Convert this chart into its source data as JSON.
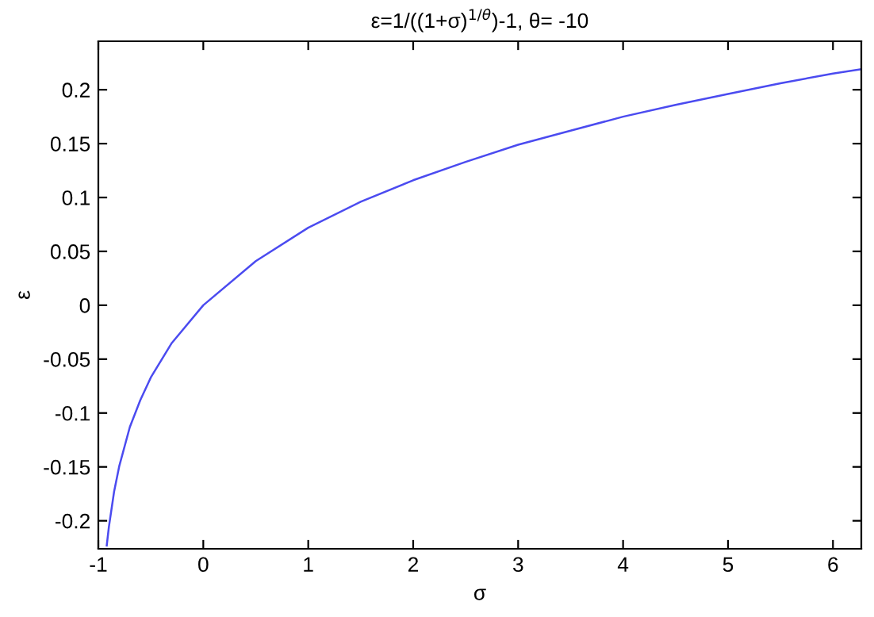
{
  "chart_data": {
    "type": "line",
    "title": "ε=1/((1+σ)$^{1/θ}$)-1, θ= -10",
    "xlabel": "σ",
    "ylabel": "ε",
    "x": [
      -0.92,
      -0.9,
      -0.85,
      -0.8,
      -0.7,
      -0.6,
      -0.5,
      -0.3,
      0,
      0.5,
      1,
      1.5,
      2,
      2.5,
      3,
      3.5,
      4,
      4.5,
      5,
      5.5,
      6,
      6.27
    ],
    "series": [
      {
        "color": "#4b4bf0",
        "values": [
          -0.223,
          -0.206,
          -0.173,
          -0.149,
          -0.113,
          -0.088,
          -0.067,
          -0.035,
          0,
          0.041,
          0.072,
          0.096,
          0.116,
          0.133,
          0.149,
          0.162,
          0.175,
          0.186,
          0.196,
          0.206,
          0.215,
          0.219
        ]
      }
    ],
    "xlim": [
      -1,
      6.27
    ],
    "ylim": [
      -0.226,
      0.245
    ],
    "xticks": [
      -1,
      0,
      1,
      2,
      3,
      4,
      5,
      6
    ],
    "yticks": [
      -0.2,
      -0.15,
      -0.1,
      -0.05,
      0,
      0.05,
      0.1,
      0.15,
      0.2
    ],
    "grid": false,
    "legend": false,
    "line_style": "solid",
    "marker": "none"
  }
}
